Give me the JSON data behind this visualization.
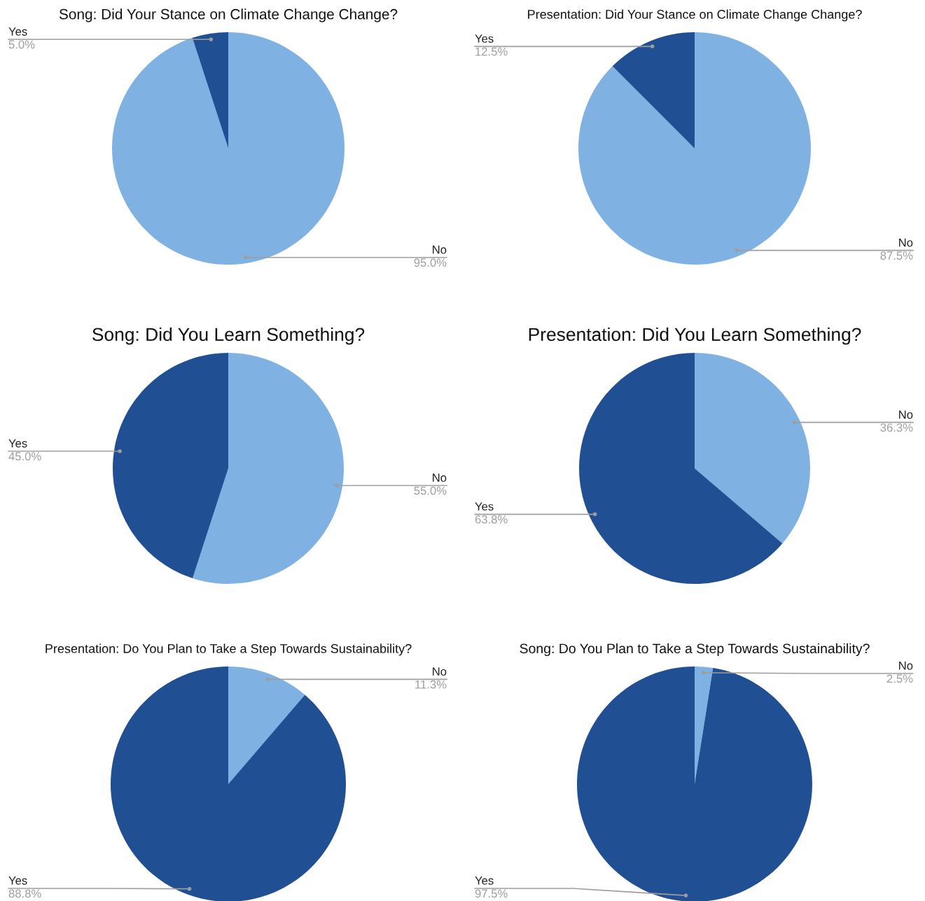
{
  "chart_data": [
    {
      "type": "pie",
      "title": "Song: Did Your Stance on Climate Change Change?",
      "categories": [
        "No",
        "Yes"
      ],
      "values": [
        95.0,
        5.0
      ],
      "value_labels": [
        "95.0%",
        "5.0%"
      ],
      "colors": [
        "#7fb1e2",
        "#214f93"
      ]
    },
    {
      "type": "pie",
      "title": "Presentation: Did Your Stance on Climate Change Change?",
      "categories": [
        "No",
        "Yes"
      ],
      "values": [
        87.5,
        12.5
      ],
      "value_labels": [
        "87.5%",
        "12.5%"
      ],
      "colors": [
        "#7fb1e2",
        "#214f93"
      ]
    },
    {
      "type": "pie",
      "title": "Song: Did You Learn Something?",
      "categories": [
        "No",
        "Yes"
      ],
      "values": [
        55.0,
        45.0
      ],
      "value_labels": [
        "55.0%",
        "45.0%"
      ],
      "colors": [
        "#7fb1e2",
        "#214f93"
      ]
    },
    {
      "type": "pie",
      "title": "Presentation: Did You Learn Something?",
      "categories": [
        "No",
        "Yes"
      ],
      "values": [
        36.3,
        63.8
      ],
      "value_labels": [
        "36.3%",
        "63.8%"
      ],
      "colors": [
        "#7fb1e2",
        "#214f93"
      ]
    },
    {
      "type": "pie",
      "title": "Presentation: Do You Plan to Take a Step Towards Sustainability?",
      "categories": [
        "No",
        "Yes"
      ],
      "values": [
        11.3,
        88.8
      ],
      "value_labels": [
        "11.3%",
        "88.8%"
      ],
      "colors": [
        "#7fb1e2",
        "#214f93"
      ]
    },
    {
      "type": "pie",
      "title": "Song: Do You Plan to Take a Step Towards Sustainability?",
      "categories": [
        "No",
        "Yes"
      ],
      "values": [
        2.5,
        97.5
      ],
      "value_labels": [
        "2.5%",
        "97.5%"
      ],
      "colors": [
        "#7fb1e2",
        "#214f93"
      ]
    }
  ]
}
